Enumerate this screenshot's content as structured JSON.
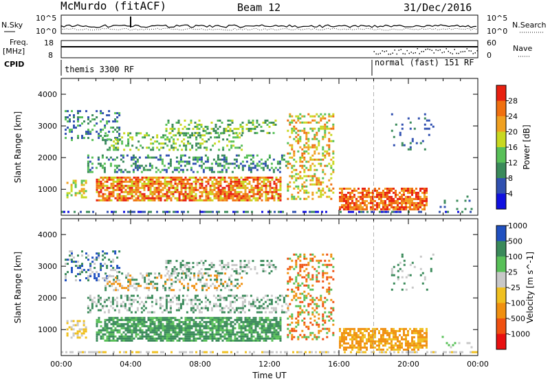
{
  "header": {
    "station": "McMurdo (fitACF)",
    "beam": "Beam 12",
    "date": "31/Dec/2016"
  },
  "status_panel": {
    "left_label": "N.Sky",
    "right_label": "N.Search",
    "y_top": "10^5",
    "y_bottom": "10^0",
    "right_top": "10^5",
    "right_bottom": "10^0"
  },
  "freq_panel": {
    "label_line1": "Freq.",
    "label_line2": "[MHz]",
    "tick_top": "18",
    "tick_bottom": "8",
    "right_label": "Nave",
    "right_top": "60",
    "right_bottom": "0"
  },
  "cpid_panel": {
    "label": "CPID",
    "mode_1": "themis 3300 RF",
    "mode_2": "normal (fast) 151 RF"
  },
  "colors": {
    "power_scale": [
      "#1010e0",
      "#3050b0",
      "#3a8a5a",
      "#58c058",
      "#c8d820",
      "#f0a020",
      "#f07010",
      "#e82010"
    ],
    "velocity_scale": [
      "#e81010",
      "#f05010",
      "#f09010",
      "#f0c020",
      "#c8c8c8",
      "#58c058",
      "#3a8a5a",
      "#2050c0"
    ]
  },
  "chart_data": [
    {
      "type": "heatmap",
      "name": "power",
      "x_range": [
        "00:00",
        "24:00"
      ],
      "xticks": [
        "00:00",
        "04:00",
        "08:00",
        "12:00",
        "16:00",
        "20:00",
        "00:00"
      ],
      "ylabel": "Slant Range [km]",
      "ylim": [
        180,
        4500
      ],
      "yticks": [
        "1000",
        "2000",
        "3000",
        "4000"
      ],
      "colorbar_label": "Power [dB]",
      "colorbar_ticks": [
        "4",
        "8",
        "12",
        "16",
        "20",
        "24",
        "28"
      ],
      "colorbar_range": [
        0,
        30
      ],
      "mode_change_time": "18:00"
    },
    {
      "type": "heatmap",
      "name": "velocity",
      "x_range": [
        "00:00",
        "24:00"
      ],
      "xticks": [
        "00:00",
        "04:00",
        "08:00",
        "12:00",
        "16:00",
        "20:00",
        "00:00"
      ],
      "xlabel": "Time UT",
      "ylabel": "Slant Range [km]",
      "ylim": [
        180,
        4500
      ],
      "yticks": [
        "1000",
        "2000",
        "3000",
        "4000"
      ],
      "colorbar_label": "Velocity [m s^-1]",
      "colorbar_ticks": [
        "-1000",
        "-500",
        "-100",
        "-25",
        "25",
        "100",
        "500",
        "1000"
      ],
      "colorbar_range": [
        -1000,
        1000
      ],
      "mode_change_time": "18:00"
    }
  ]
}
